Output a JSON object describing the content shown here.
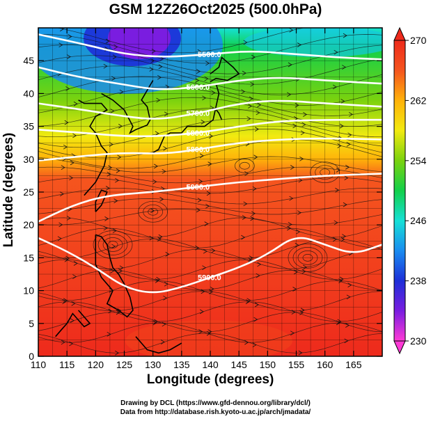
{
  "chart_data": {
    "type": "heatmap",
    "title": "GSM 12Z26Oct2025 (500.0hPa)",
    "xlabel": "Longitude (degrees)",
    "ylabel": "Latitude  (degrees)",
    "xlim": [
      110,
      170
    ],
    "ylim": [
      0,
      50
    ],
    "xticks": [
      110,
      115,
      120,
      125,
      130,
      135,
      140,
      145,
      150,
      155,
      160,
      165
    ],
    "yticks": [
      0,
      5,
      10,
      15,
      20,
      25,
      30,
      35,
      40,
      45
    ],
    "grid": true,
    "colorbar": {
      "min": 230,
      "max": 270,
      "ticks": [
        230,
        238,
        246,
        254,
        262,
        270
      ],
      "placement": "right"
    },
    "colorscale": [
      "#ff3ad6",
      "#7a1de0",
      "#1d2fd8",
      "#1a8cf0",
      "#16e0d6",
      "#12d04a",
      "#7ad20e",
      "#f2ea10",
      "#ffb20a",
      "#f5551e",
      "#ee2a1c"
    ],
    "contour_label": "5900.0",
    "contours": [
      {
        "label": "5500.0",
        "points": [
          [
            110,
            49.0
          ],
          [
            118,
            47.5
          ],
          [
            125,
            46.0
          ],
          [
            132,
            45.5
          ],
          [
            140,
            46.0
          ],
          [
            147,
            46.5
          ],
          [
            155,
            46.0
          ],
          [
            162,
            45.5
          ],
          [
            170,
            45.2
          ]
        ]
      },
      {
        "label": "5600.0",
        "points": [
          [
            110,
            44.0
          ],
          [
            117,
            42.5
          ],
          [
            124,
            41.5
          ],
          [
            131,
            40.5
          ],
          [
            138,
            41.0
          ],
          [
            145,
            42.0
          ],
          [
            152,
            42.5
          ],
          [
            160,
            42.0
          ],
          [
            170,
            41.5
          ]
        ]
      },
      {
        "label": "5700.0",
        "points": [
          [
            110,
            38.5
          ],
          [
            118,
            37.5
          ],
          [
            125,
            36.5
          ],
          [
            131,
            36.0
          ],
          [
            138,
            37.0
          ],
          [
            145,
            38.5
          ],
          [
            152,
            39.0
          ],
          [
            160,
            38.5
          ],
          [
            170,
            38.0
          ]
        ]
      },
      {
        "label": "5800.0",
        "points": [
          [
            110,
            34.5
          ],
          [
            118,
            34.0
          ],
          [
            125,
            33.5
          ],
          [
            131,
            33.5
          ],
          [
            138,
            34.0
          ],
          [
            145,
            35.0
          ],
          [
            152,
            35.8
          ],
          [
            160,
            36.0
          ],
          [
            170,
            36.0
          ]
        ]
      },
      {
        "label": "5800.0",
        "points": [
          [
            110,
            29.8
          ],
          [
            118,
            30.5
          ],
          [
            125,
            31.0
          ],
          [
            132,
            30.8
          ],
          [
            138,
            31.5
          ],
          [
            145,
            32.5
          ],
          [
            152,
            33.0
          ],
          [
            160,
            33.2
          ],
          [
            170,
            33.0
          ]
        ]
      },
      {
        "label": "5900.0",
        "points": [
          [
            110,
            20.5
          ],
          [
            116,
            23.0
          ],
          [
            122,
            24.5
          ],
          [
            130,
            25.0
          ],
          [
            138,
            25.8
          ],
          [
            145,
            26.5
          ],
          [
            152,
            27.0
          ],
          [
            160,
            27.5
          ],
          [
            170,
            27.8
          ]
        ]
      },
      {
        "label": "5900.0",
        "points": [
          [
            110,
            18.0
          ],
          [
            115,
            16.0
          ],
          [
            120,
            13.5
          ],
          [
            125,
            10.5
          ],
          [
            130,
            9.5
          ],
          [
            135,
            10.5
          ],
          [
            140,
            12.0
          ],
          [
            145,
            13.5
          ],
          [
            150,
            15.5
          ],
          [
            155,
            18.5
          ],
          [
            160,
            17.0
          ],
          [
            165,
            15.5
          ],
          [
            170,
            17.0
          ]
        ]
      }
    ]
  },
  "credits": {
    "line1": "Drawing by DCL (https://www.gfd-dennou.org/library/dcl/)",
    "line2": "Data from http://database.rish.kyoto-u.ac.jp/arch/jmadata/"
  }
}
